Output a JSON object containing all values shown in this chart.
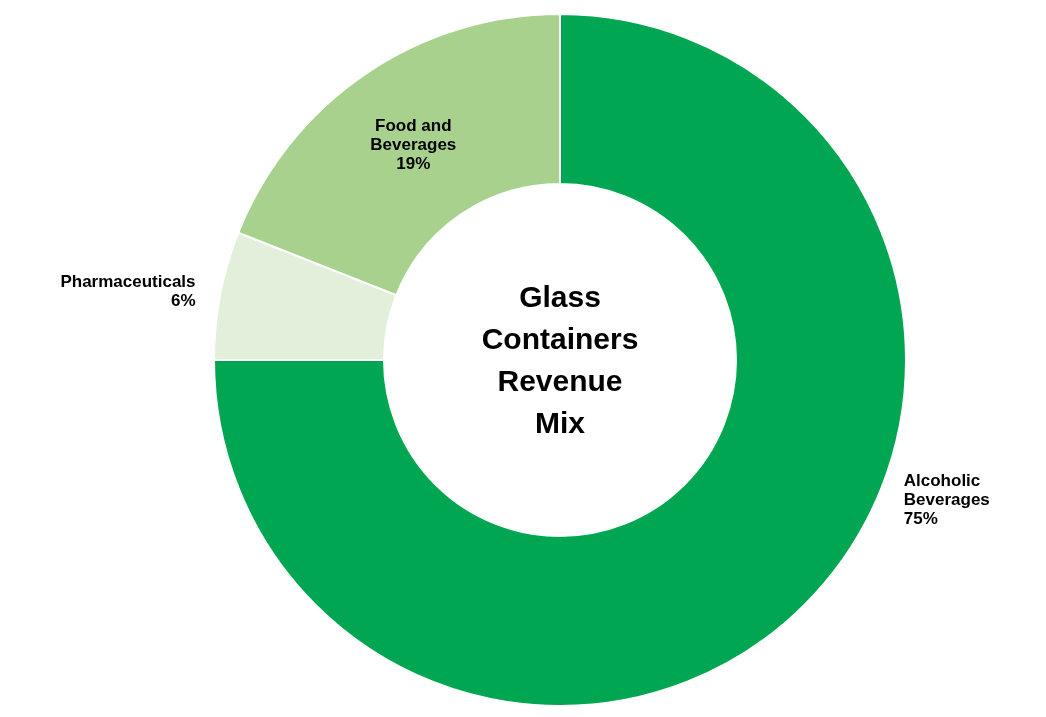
{
  "chart_data": {
    "type": "donut",
    "title": "Glass Containers Revenue Mix",
    "categories": [
      "Alcoholic Beverages",
      "Pharmaceuticals",
      "Food and Beverages"
    ],
    "values": [
      75,
      6,
      19
    ],
    "value_labels": [
      "75%",
      "6%",
      "19%"
    ],
    "colors": [
      "#00a651",
      "#e2efda",
      "#a9d18e"
    ]
  }
}
